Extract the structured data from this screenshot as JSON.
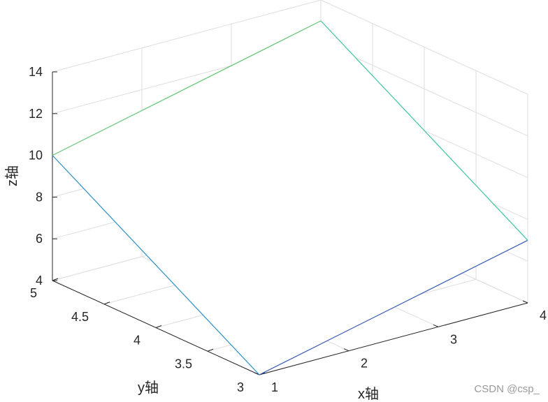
{
  "chart_data": {
    "type": "mesh3d",
    "title": "",
    "xlabel": "x轴",
    "ylabel": "y轴",
    "zlabel": "z轴",
    "x": [
      1,
      4
    ],
    "y": [
      3,
      5
    ],
    "z": [
      [
        4,
        10
      ],
      [
        7,
        13
      ]
    ],
    "z_note_order": "z[i][j] = value at x[i], y[j]",
    "xlim": [
      1,
      4
    ],
    "ylim": [
      3,
      5
    ],
    "zlim": [
      4,
      14
    ],
    "xticks": [
      "1",
      "2",
      "3",
      "4"
    ],
    "yticks": [
      "3",
      "3.5",
      "4",
      "4.5",
      "5"
    ],
    "zticks": [
      "4",
      "6",
      "8",
      "10",
      "12",
      "14"
    ],
    "grid": true,
    "colormap": "parula",
    "colors": {
      "axis": "#262626",
      "grid": "#dedede",
      "low": "#3e26a8",
      "mid": "#1fc4d4",
      "high": "#7cc53e"
    }
  },
  "watermark": "CSDN @csp_"
}
